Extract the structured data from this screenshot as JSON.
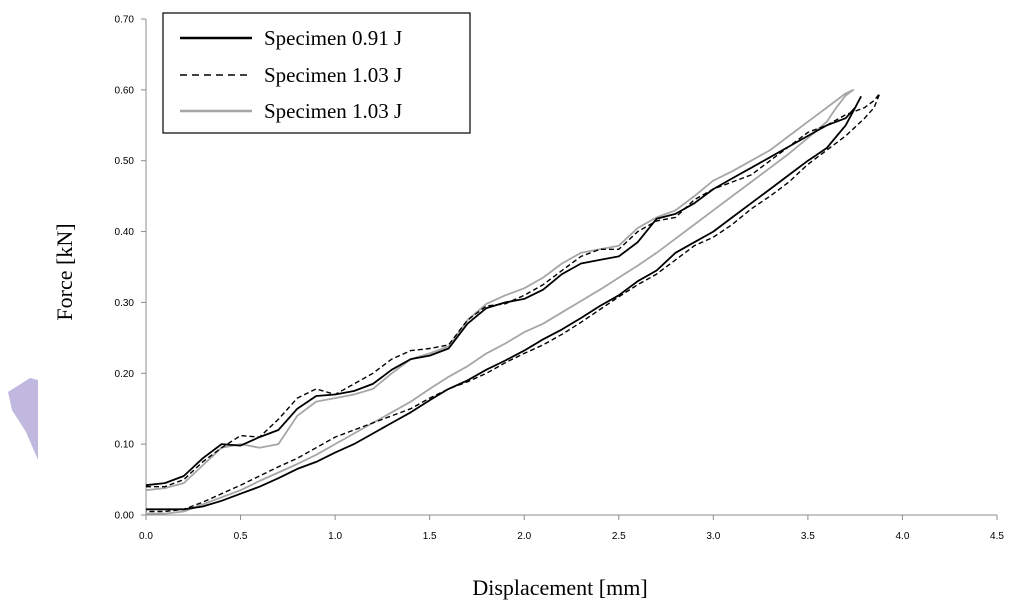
{
  "chart_data": {
    "type": "line",
    "xlabel": "Displacement [mm]",
    "ylabel": "Force [kN]",
    "xlim": [
      0,
      4.5
    ],
    "ylim": [
      0,
      0.7
    ],
    "x_ticks": [
      "0.0",
      "0.5",
      "1.0",
      "1.5",
      "2.0",
      "2.5",
      "3.0",
      "3.5",
      "4.0",
      "4.5"
    ],
    "y_ticks": [
      "0.00",
      "0.10",
      "0.20",
      "0.30",
      "0.40",
      "0.50",
      "0.60",
      "0.70"
    ],
    "grid": false,
    "legend_position": "top-left",
    "series": [
      {
        "name": "Specimen 0.91 J",
        "color": "#000000",
        "dash": "solid",
        "x": [
          0.0,
          0.1,
          0.2,
          0.3,
          0.4,
          0.5,
          0.6,
          0.7,
          0.8,
          0.9,
          1.0,
          1.1,
          1.2,
          1.3,
          1.4,
          1.5,
          1.6,
          1.7,
          1.8,
          1.9,
          2.0,
          2.1,
          2.2,
          2.3,
          2.4,
          2.5,
          2.6,
          2.7,
          2.8,
          2.9,
          3.0,
          3.1,
          3.2,
          3.3,
          3.4,
          3.5,
          3.6,
          3.7,
          3.75,
          3.78,
          3.75,
          3.7,
          3.6,
          3.5,
          3.4,
          3.3,
          3.2,
          3.1,
          3.0,
          2.9,
          2.8,
          2.7,
          2.6,
          2.5,
          2.4,
          2.3,
          2.2,
          2.1,
          2.0,
          1.9,
          1.8,
          1.7,
          1.6,
          1.5,
          1.4,
          1.3,
          1.2,
          1.1,
          1.0,
          0.9,
          0.8,
          0.7,
          0.6,
          0.5,
          0.4,
          0.3,
          0.2,
          0.1,
          0.0
        ],
        "y": [
          0.042,
          0.045,
          0.055,
          0.08,
          0.1,
          0.098,
          0.11,
          0.12,
          0.15,
          0.168,
          0.17,
          0.175,
          0.185,
          0.205,
          0.22,
          0.225,
          0.235,
          0.27,
          0.292,
          0.3,
          0.305,
          0.318,
          0.34,
          0.355,
          0.36,
          0.365,
          0.385,
          0.418,
          0.425,
          0.44,
          0.46,
          0.475,
          0.49,
          0.505,
          0.52,
          0.535,
          0.55,
          0.56,
          0.575,
          0.59,
          0.575,
          0.55,
          0.518,
          0.5,
          0.48,
          0.46,
          0.44,
          0.42,
          0.4,
          0.385,
          0.37,
          0.345,
          0.33,
          0.31,
          0.295,
          0.278,
          0.262,
          0.248,
          0.232,
          0.218,
          0.205,
          0.19,
          0.178,
          0.162,
          0.145,
          0.13,
          0.115,
          0.1,
          0.088,
          0.075,
          0.065,
          0.052,
          0.04,
          0.03,
          0.02,
          0.012,
          0.008,
          0.008,
          0.008
        ]
      },
      {
        "name": "Specimen 1.03 J",
        "color": "#000000",
        "dash": "dashed",
        "x": [
          0.0,
          0.1,
          0.2,
          0.3,
          0.4,
          0.5,
          0.6,
          0.7,
          0.8,
          0.9,
          1.0,
          1.1,
          1.2,
          1.3,
          1.4,
          1.5,
          1.6,
          1.7,
          1.8,
          1.9,
          2.0,
          2.1,
          2.2,
          2.3,
          2.4,
          2.5,
          2.6,
          2.7,
          2.8,
          2.9,
          3.0,
          3.1,
          3.2,
          3.3,
          3.4,
          3.5,
          3.6,
          3.7,
          3.8,
          3.85,
          3.88,
          3.85,
          3.8,
          3.7,
          3.6,
          3.5,
          3.4,
          3.3,
          3.2,
          3.1,
          3.0,
          2.9,
          2.8,
          2.7,
          2.6,
          2.5,
          2.4,
          2.3,
          2.2,
          2.1,
          2.0,
          1.9,
          1.8,
          1.7,
          1.6,
          1.5,
          1.4,
          1.3,
          1.2,
          1.1,
          1.0,
          0.9,
          0.8,
          0.7,
          0.6,
          0.5,
          0.4,
          0.3,
          0.2,
          0.1,
          0.0
        ],
        "y": [
          0.04,
          0.04,
          0.05,
          0.075,
          0.095,
          0.112,
          0.11,
          0.135,
          0.165,
          0.178,
          0.17,
          0.185,
          0.2,
          0.22,
          0.232,
          0.235,
          0.24,
          0.275,
          0.295,
          0.298,
          0.31,
          0.325,
          0.345,
          0.365,
          0.375,
          0.375,
          0.4,
          0.415,
          0.42,
          0.445,
          0.46,
          0.47,
          0.48,
          0.5,
          0.52,
          0.54,
          0.55,
          0.565,
          0.575,
          0.585,
          0.595,
          0.575,
          0.56,
          0.535,
          0.515,
          0.495,
          0.47,
          0.45,
          0.432,
          0.41,
          0.392,
          0.38,
          0.36,
          0.34,
          0.325,
          0.308,
          0.29,
          0.272,
          0.255,
          0.24,
          0.228,
          0.215,
          0.2,
          0.188,
          0.178,
          0.165,
          0.15,
          0.14,
          0.13,
          0.12,
          0.11,
          0.095,
          0.08,
          0.068,
          0.055,
          0.042,
          0.03,
          0.018,
          0.008,
          0.005,
          0.005
        ]
      },
      {
        "name": "Specimen 1.03 J",
        "color": "#a6a6a6",
        "dash": "solid",
        "x": [
          0.0,
          0.1,
          0.2,
          0.3,
          0.4,
          0.5,
          0.6,
          0.7,
          0.8,
          0.9,
          1.0,
          1.1,
          1.2,
          1.3,
          1.4,
          1.5,
          1.6,
          1.7,
          1.8,
          1.9,
          2.0,
          2.1,
          2.2,
          2.3,
          2.4,
          2.5,
          2.6,
          2.7,
          2.8,
          2.9,
          3.0,
          3.1,
          3.2,
          3.3,
          3.4,
          3.5,
          3.6,
          3.7,
          3.74,
          3.7,
          3.65,
          3.6,
          3.5,
          3.4,
          3.3,
          3.2,
          3.1,
          3.0,
          2.9,
          2.8,
          2.7,
          2.6,
          2.5,
          2.4,
          2.3,
          2.2,
          2.1,
          2.0,
          1.9,
          1.8,
          1.7,
          1.6,
          1.5,
          1.4,
          1.3,
          1.2,
          1.1,
          1.0,
          0.9,
          0.8,
          0.7,
          0.6,
          0.5,
          0.4,
          0.3,
          0.2,
          0.1,
          0.0
        ],
        "y": [
          0.035,
          0.038,
          0.045,
          0.07,
          0.095,
          0.1,
          0.095,
          0.1,
          0.14,
          0.16,
          0.165,
          0.17,
          0.178,
          0.2,
          0.22,
          0.228,
          0.238,
          0.275,
          0.298,
          0.31,
          0.32,
          0.335,
          0.355,
          0.37,
          0.375,
          0.38,
          0.405,
          0.42,
          0.43,
          0.45,
          0.472,
          0.485,
          0.5,
          0.515,
          0.535,
          0.555,
          0.575,
          0.595,
          0.6,
          0.592,
          0.575,
          0.555,
          0.532,
          0.51,
          0.49,
          0.47,
          0.45,
          0.43,
          0.41,
          0.39,
          0.37,
          0.352,
          0.335,
          0.318,
          0.302,
          0.286,
          0.27,
          0.258,
          0.242,
          0.228,
          0.21,
          0.195,
          0.178,
          0.16,
          0.145,
          0.13,
          0.115,
          0.1,
          0.085,
          0.072,
          0.06,
          0.048,
          0.035,
          0.025,
          0.015,
          0.005,
          0.002,
          0.002
        ]
      }
    ]
  },
  "watermark": {
    "color": "#b9b0da"
  }
}
